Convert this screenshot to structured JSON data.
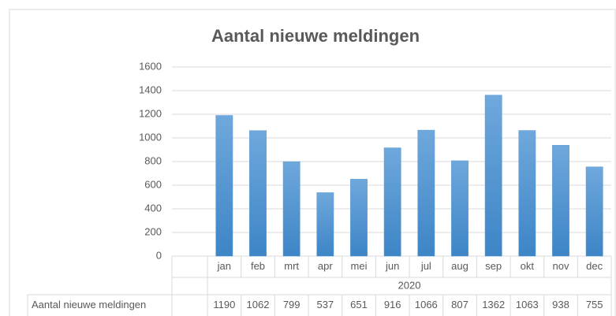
{
  "chart_data": {
    "type": "bar",
    "title": "Aantal nieuwe meldingen",
    "categories": [
      "jan",
      "feb",
      "mrt",
      "apr",
      "mei",
      "jun",
      "jul",
      "aug",
      "sep",
      "okt",
      "nov",
      "dec"
    ],
    "group_label": "2020",
    "series": [
      {
        "name": "Aantal nieuwe meldingen",
        "color": "#5b9bd5",
        "values": [
          1190,
          1062,
          799,
          537,
          651,
          916,
          1066,
          807,
          1362,
          1063,
          938,
          755
        ]
      }
    ],
    "ylim": [
      0,
      1600
    ],
    "yticks": [
      0,
      200,
      400,
      600,
      800,
      1000,
      1200,
      1400,
      1600
    ],
    "grid": true
  }
}
